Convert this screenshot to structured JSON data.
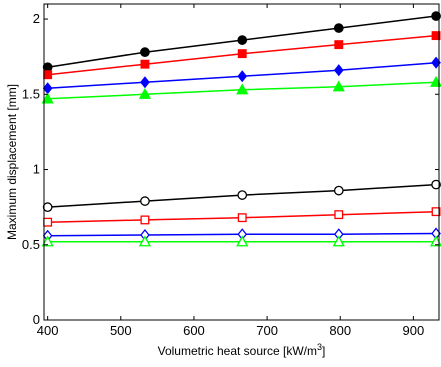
{
  "chart_data": {
    "type": "line",
    "title": "",
    "xlabel": "Volumetric heat source [kW/m",
    "xlabel_superscript": "3",
    "xlabel_suffix": "]",
    "ylabel": "Maximum displacement [mm]",
    "xlim": [
      395,
      935
    ],
    "ylim": [
      0,
      2.1
    ],
    "xticks": [
      400,
      500,
      600,
      700,
      800,
      900
    ],
    "yticks": [
      0,
      0.5,
      1,
      1.5,
      2
    ],
    "ytick_labels": [
      "0",
      "0.5",
      "1",
      "1.5",
      "2"
    ],
    "grid": false,
    "legend": false,
    "x": [
      400,
      533,
      666,
      798,
      931
    ],
    "series": [
      {
        "color": "#000000",
        "marker": "circle",
        "filled": true,
        "values": [
          1.68,
          1.78,
          1.86,
          1.94,
          2.02
        ]
      },
      {
        "color": "#ff0000",
        "marker": "square",
        "filled": true,
        "values": [
          1.63,
          1.7,
          1.77,
          1.83,
          1.89
        ]
      },
      {
        "color": "#0000ff",
        "marker": "diamond",
        "filled": true,
        "values": [
          1.54,
          1.58,
          1.62,
          1.66,
          1.71
        ]
      },
      {
        "color": "#00ff00",
        "marker": "triangle",
        "filled": true,
        "values": [
          1.47,
          1.5,
          1.53,
          1.55,
          1.58
        ]
      },
      {
        "color": "#000000",
        "marker": "circle",
        "filled": false,
        "values": [
          0.75,
          0.79,
          0.83,
          0.86,
          0.9
        ]
      },
      {
        "color": "#ff0000",
        "marker": "square",
        "filled": false,
        "values": [
          0.65,
          0.665,
          0.68,
          0.7,
          0.72
        ]
      },
      {
        "color": "#0000ff",
        "marker": "diamond",
        "filled": false,
        "values": [
          0.56,
          0.565,
          0.57,
          0.57,
          0.575
        ]
      },
      {
        "color": "#00ff00",
        "marker": "triangle",
        "filled": false,
        "values": [
          0.52,
          0.52,
          0.52,
          0.52,
          0.52
        ]
      }
    ]
  }
}
